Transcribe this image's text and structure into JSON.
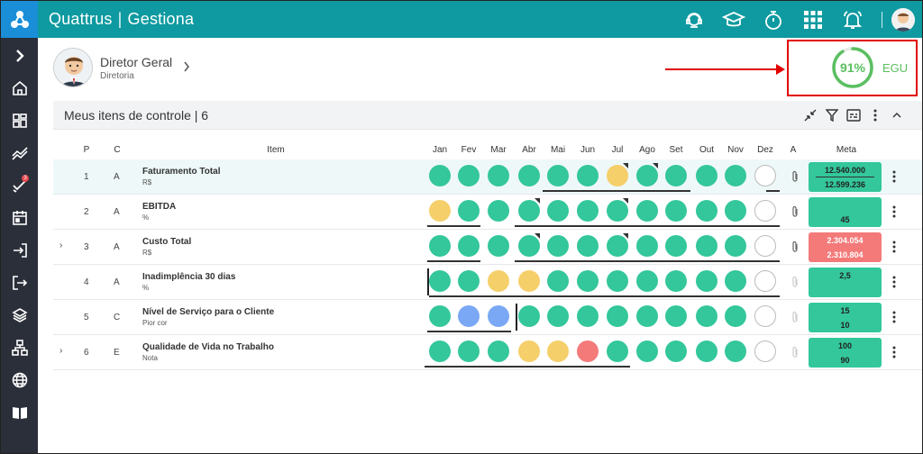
{
  "header": {
    "brand_left": "Quattrus",
    "brand_sep": "|",
    "brand_right": "Gestiona",
    "icons": [
      "support-icon",
      "graduation-cap-icon",
      "stopwatch-icon",
      "apps-grid-icon",
      "bell-icon",
      "user-avatar"
    ]
  },
  "sidebar": {
    "items": [
      "expand-chevron-icon",
      "home-icon",
      "dashboard-icon",
      "trend-icon",
      "tasks-icon",
      "calendar-icon",
      "login-icon",
      "logout-icon",
      "layers-icon",
      "org-chart-icon",
      "globe-icon",
      "book-icon"
    ],
    "badge": "3"
  },
  "user": {
    "name": "Diretor Geral",
    "role": "Diretoria"
  },
  "score": {
    "percent": "91%",
    "value": 0.91,
    "label": "EGU",
    "color": "#5bbf61"
  },
  "panel": {
    "title": "Meus itens de controle | 6"
  },
  "columns": {
    "p": "P",
    "c": "C",
    "item": "Item",
    "months": [
      "Jan",
      "Fev",
      "Mar",
      "Abr",
      "Mai",
      "Jun",
      "Jul",
      "Ago",
      "Set",
      "Out",
      "Nov",
      "Dez"
    ],
    "a": "A",
    "meta": "Meta"
  },
  "colors": {
    "green": "#33c79b",
    "yellow": "#f5cf6a",
    "blue": "#7aa8f5",
    "red": "#f47a7a",
    "empty": "#ffffff"
  },
  "rows": [
    {
      "p": "1",
      "c": "A",
      "name": "Faturamento Total",
      "unit": "R$",
      "expand": "",
      "months": [
        "g",
        "g",
        "g",
        "g",
        "g",
        "g",
        "y",
        "g",
        "g",
        "g",
        "g",
        "e"
      ],
      "meta1": "12.540.000",
      "meta2": "12.599.236",
      "meta_color": "green"
    },
    {
      "p": "2",
      "c": "A",
      "name": "EBITDA",
      "unit": "%",
      "expand": "",
      "months": [
        "y",
        "g",
        "g",
        "g",
        "g",
        "g",
        "g",
        "g",
        "g",
        "g",
        "g",
        "e"
      ],
      "meta1": "",
      "meta2": "45",
      "meta_color": "green"
    },
    {
      "p": "3",
      "c": "A",
      "name": "Custo Total",
      "unit": "R$",
      "expand": "›",
      "months": [
        "g",
        "g",
        "g",
        "g",
        "g",
        "g",
        "g",
        "g",
        "g",
        "g",
        "g",
        "e"
      ],
      "meta1": "2.304.054",
      "meta2": "2.310.804",
      "meta_color": "red"
    },
    {
      "p": "4",
      "c": "A",
      "name": "Inadimplência 30 dias",
      "unit": "%",
      "expand": "",
      "months": [
        "g",
        "g",
        "y",
        "y",
        "g",
        "g",
        "g",
        "g",
        "g",
        "g",
        "g",
        "e"
      ],
      "meta1": "2,5",
      "meta2": "",
      "meta_color": "green"
    },
    {
      "p": "5",
      "c": "C",
      "name": "Nível de Serviço para o Cliente",
      "unit": "Pior cor",
      "expand": "",
      "months": [
        "g",
        "b",
        "b",
        "g",
        "g",
        "g",
        "g",
        "g",
        "g",
        "g",
        "g",
        "e"
      ],
      "meta1": "15",
      "meta2": "10",
      "meta_color": "green"
    },
    {
      "p": "6",
      "c": "E",
      "name": "Qualidade de Vida no Trabalho",
      "unit": "Nota",
      "expand": "›",
      "months": [
        "g",
        "g",
        "g",
        "y",
        "y",
        "r",
        "g",
        "g",
        "g",
        "g",
        "g",
        "e"
      ],
      "meta1": "100",
      "meta2": "90",
      "meta_color": "green"
    }
  ]
}
